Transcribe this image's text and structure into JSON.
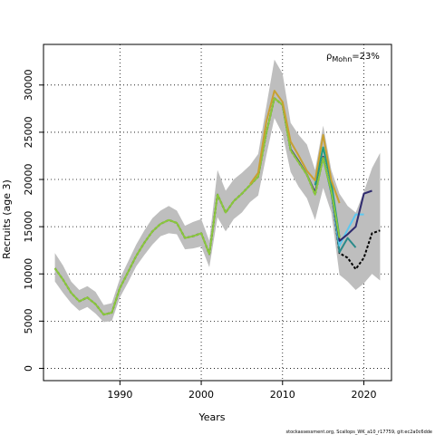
{
  "chart_data": {
    "type": "line",
    "xlabel": "Years",
    "ylabel": "Recruits (age 3)",
    "xlim": [
      1980.6,
      2023.4
    ],
    "ylim": [
      -1300,
      34300
    ],
    "x_ticks": [
      1990,
      2000,
      2010,
      2020
    ],
    "y_ticks": [
      0,
      5000,
      10000,
      15000,
      20000,
      25000,
      30000
    ],
    "grid": true,
    "grid_style": "dotted",
    "annotation": {
      "rho_symbol": "ρ",
      "rho_subscript": "Mohn",
      "rho_value": "=23%"
    },
    "footer": "stockassessment.org, Scallops_WK_a10_r17759, git:ec2a0c6dde",
    "ribbons": [
      {
        "color": "#bebebe",
        "x": [
          1982,
          1983,
          1984,
          1985,
          1986,
          1987,
          1988,
          1989,
          1990,
          1991,
          1992,
          1993,
          1994,
          1995,
          1996,
          1997,
          1998,
          1999,
          2000,
          2001,
          2002,
          2003,
          2004,
          2005,
          2006,
          2007,
          2008,
          2009,
          2010,
          2011,
          2012,
          2013,
          2014,
          2015,
          2016,
          2017,
          2018,
          2019,
          2020,
          2021,
          2022
        ],
        "lower": [
          9200,
          8000,
          6900,
          6100,
          6500,
          5800,
          4900,
          5000,
          7500,
          9100,
          10800,
          12000,
          13100,
          14000,
          14300,
          14200,
          12600,
          12700,
          12900,
          10700,
          16000,
          14500,
          15800,
          16500,
          17600,
          18300,
          22500,
          26500,
          24800,
          20800,
          19200,
          18000,
          15700,
          19100,
          16500,
          9900,
          9200,
          8300,
          9000,
          10000,
          9300
        ],
        "upper": [
          12200,
          10900,
          9200,
          8300,
          8700,
          8100,
          6700,
          6900,
          9500,
          11300,
          13100,
          14600,
          15900,
          16700,
          17200,
          16700,
          15100,
          15500,
          15800,
          13500,
          21000,
          18800,
          20000,
          20700,
          21500,
          22700,
          27700,
          32700,
          31200,
          26000,
          24700,
          23700,
          21000,
          25700,
          21000,
          18500,
          17200,
          16500,
          18700,
          21200,
          22800
        ]
      }
    ],
    "series": [
      {
        "color": "#000000",
        "dash": "3,2",
        "width": 2,
        "x": [
          1982,
          1983,
          1984,
          1985,
          1986,
          1987,
          1988,
          1989,
          1990,
          1991,
          1992,
          1993,
          1994,
          1995,
          1996,
          1997,
          1998,
          1999,
          2000,
          2001,
          2002,
          2003,
          2004,
          2005,
          2006,
          2007,
          2008,
          2009,
          2010,
          2011,
          2012,
          2013,
          2014,
          2015,
          2016,
          2017,
          2018,
          2019,
          2020,
          2021,
          2022
        ],
        "y": [
          10600,
          9400,
          8000,
          7100,
          7500,
          6800,
          5700,
          5900,
          8500,
          10200,
          11900,
          13300,
          14500,
          15300,
          15700,
          15400,
          13800,
          14000,
          14300,
          12100,
          18400,
          16500,
          17700,
          18500,
          19400,
          20300,
          24900,
          28600,
          27900,
          23100,
          21800,
          20500,
          18400,
          22300,
          18700,
          12200,
          11700,
          10500,
          11700,
          14300,
          14600
        ]
      },
      {
        "color": "#2a8a8a",
        "width": 2,
        "x": [
          2015,
          2016,
          2017,
          2018,
          2019
        ],
        "y": [
          22200,
          18800,
          12300,
          13800,
          12800
        ]
      },
      {
        "color": "#5bc8f0",
        "width": 2,
        "x": [
          2014,
          2015,
          2016,
          2017,
          2018,
          2019,
          2020
        ],
        "y": [
          18500,
          22300,
          18500,
          13000,
          14700,
          16300,
          16300
        ]
      },
      {
        "color": "#2e2a6e",
        "width": 2,
        "x": [
          2010,
          2011,
          2012,
          2013,
          2014,
          2015,
          2016,
          2017,
          2018,
          2019,
          2020,
          2021
        ],
        "y": [
          27900,
          23200,
          21900,
          20500,
          18600,
          22400,
          18600,
          13500,
          14200,
          15000,
          18500,
          18800
        ]
      },
      {
        "color": "#1e9e82",
        "width": 2,
        "x": [
          2014,
          2015,
          2016,
          2017
        ],
        "y": [
          19400,
          23400,
          19600,
          13900
        ]
      },
      {
        "color": "#8ac83c",
        "width": 2,
        "x": [
          1982,
          1983,
          1984,
          1985,
          1986,
          1987,
          1988,
          1989,
          1990,
          1991,
          1992,
          1993,
          1994,
          1995,
          1996,
          1997,
          1998,
          1999,
          2000,
          2001,
          2002,
          2003,
          2004,
          2005,
          2006,
          2007,
          2008,
          2009,
          2010,
          2011,
          2012,
          2013,
          2014,
          2015,
          2016,
          2017
        ],
        "y": [
          10600,
          9400,
          8000,
          7100,
          7500,
          6800,
          5700,
          5900,
          8500,
          10200,
          11900,
          13300,
          14500,
          15300,
          15700,
          15400,
          13800,
          14000,
          14300,
          12100,
          18400,
          16500,
          17700,
          18500,
          19400,
          20300,
          24900,
          28600,
          27900,
          23100,
          21800,
          20500,
          18400,
          22300,
          18700,
          13800
        ]
      },
      {
        "color": "#c8a030",
        "width": 2,
        "x": [
          2006,
          2007,
          2008,
          2009,
          2010,
          2011,
          2012,
          2013,
          2014,
          2015,
          2016,
          2017
        ],
        "y": [
          19500,
          20700,
          26100,
          29400,
          28200,
          24000,
          22500,
          20900,
          19900,
          24700,
          19900,
          17500
        ]
      }
    ]
  }
}
